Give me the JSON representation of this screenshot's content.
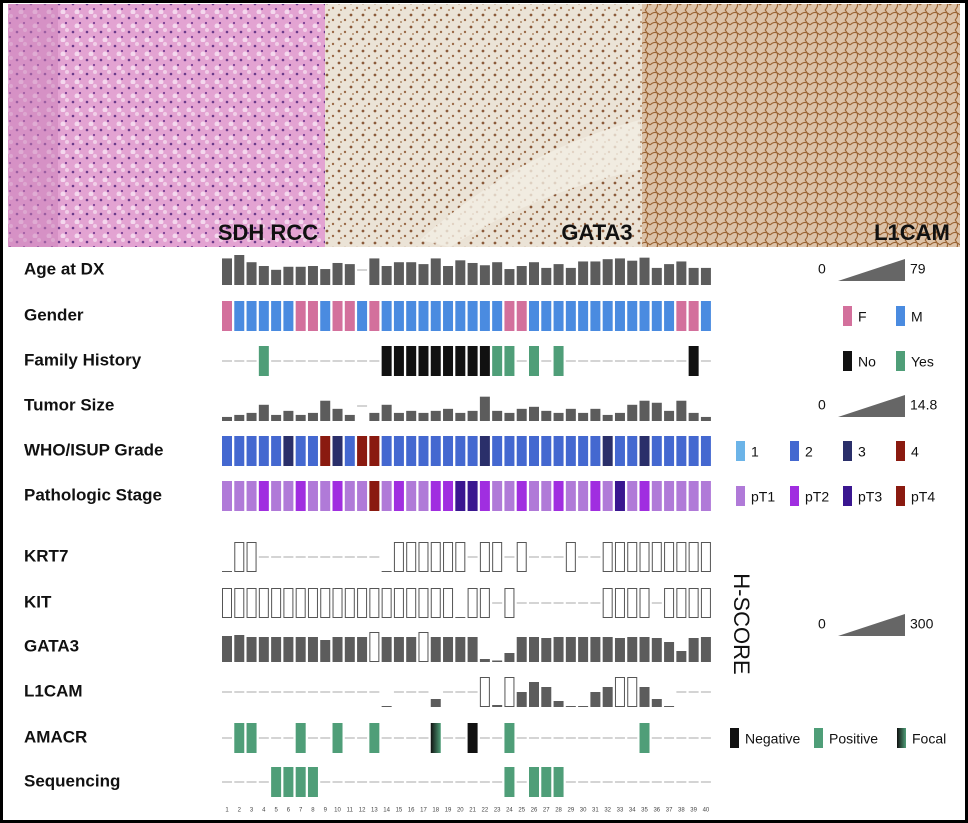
{
  "panels": [
    {
      "label": "SDH RCC"
    },
    {
      "label": "GATA3"
    },
    {
      "label": "L1CAM"
    }
  ],
  "cases": [
    1,
    2,
    3,
    4,
    5,
    6,
    7,
    8,
    9,
    10,
    11,
    12,
    13,
    14,
    15,
    16,
    17,
    18,
    19,
    20,
    21,
    22,
    23,
    24,
    25,
    26,
    27,
    28,
    29,
    30,
    31,
    32,
    33,
    34,
    35,
    36,
    37,
    38,
    39,
    40
  ],
  "hscore": {
    "label": "H-SCORE",
    "min": 0,
    "max": 300
  },
  "rows": [
    {
      "label": "Age at DX",
      "kind": "bar",
      "color": "#5c5c5c",
      "legend": {
        "type": "ramp",
        "min": 0,
        "max": 79
      },
      "values": [
        70,
        79,
        60,
        50,
        40,
        48,
        48,
        50,
        42,
        58,
        55,
        null,
        70,
        50,
        60,
        60,
        55,
        70,
        50,
        65,
        58,
        52,
        60,
        42,
        50,
        60,
        45,
        55,
        45,
        62,
        62,
        68,
        70,
        64,
        72,
        45,
        55,
        62,
        45,
        45
      ]
    },
    {
      "label": "Gender",
      "kind": "category",
      "legend": {
        "type": "swatch",
        "items": [
          {
            "label": "F",
            "color": "#d3709c"
          },
          {
            "label": "M",
            "color": "#4a8be0"
          }
        ]
      },
      "values": [
        "F",
        "M",
        "M",
        "M",
        "M",
        "M",
        "F",
        "F",
        "M",
        "F",
        "F",
        "M",
        "F",
        "M",
        "M",
        "M",
        "M",
        "M",
        "M",
        "M",
        "M",
        "M",
        "M",
        "F",
        "F",
        "M",
        "M",
        "M",
        "M",
        "M",
        "M",
        "M",
        "M",
        "M",
        "M",
        "M",
        "M",
        "F",
        "F",
        "M"
      ]
    },
    {
      "label": "Family History",
      "kind": "category",
      "legend": {
        "type": "swatch",
        "items": [
          {
            "label": "No",
            "color": "#111111"
          },
          {
            "label": "Yes",
            "color": "#4f9e78"
          }
        ]
      },
      "values": [
        null,
        null,
        null,
        "Yes",
        null,
        null,
        null,
        null,
        null,
        null,
        null,
        null,
        null,
        "No",
        "No",
        "No",
        "No",
        "No",
        "No",
        "No",
        "No",
        "No",
        "Yes",
        "Yes",
        null,
        "Yes",
        null,
        "Yes",
        null,
        null,
        null,
        null,
        null,
        null,
        null,
        null,
        null,
        null,
        "No",
        null
      ]
    },
    {
      "label": "Tumor Size",
      "kind": "bar",
      "color": "#5c5c5c",
      "legend": {
        "type": "ramp",
        "min": 0,
        "max": 14.8
      },
      "values": [
        2,
        3,
        4,
        8,
        3,
        5,
        3,
        4,
        10,
        6,
        3,
        null,
        4,
        8,
        4,
        5,
        4,
        5,
        6,
        4,
        5,
        12,
        5,
        4,
        6,
        7,
        5,
        4,
        6,
        4,
        6,
        3,
        4,
        8,
        10,
        9,
        5,
        10,
        4,
        2
      ]
    },
    {
      "label": "WHO/ISUP Grade",
      "kind": "category",
      "legend": {
        "type": "swatch",
        "items": [
          {
            "label": 1,
            "color": "#6cb4e8"
          },
          {
            "label": 2,
            "color": "#4468d0"
          },
          {
            "label": 3,
            "color": "#2a2f6a"
          },
          {
            "label": 4,
            "color": "#8a1a10"
          }
        ]
      },
      "values": [
        2,
        2,
        2,
        2,
        2,
        3,
        2,
        2,
        4,
        3,
        2,
        4,
        4,
        2,
        2,
        2,
        2,
        2,
        2,
        2,
        2,
        3,
        2,
        2,
        2,
        2,
        2,
        2,
        2,
        2,
        2,
        3,
        2,
        2,
        3,
        2,
        2,
        2,
        2,
        2
      ]
    },
    {
      "label": "Pathologic Stage",
      "kind": "category",
      "legend": {
        "type": "swatch",
        "items": [
          {
            "label": "pT1",
            "color": "#b07ad8"
          },
          {
            "label": "pT2",
            "color": "#a02ee0"
          },
          {
            "label": "pT3",
            "color": "#3a1690"
          },
          {
            "label": "pT4",
            "color": "#8a1a10"
          }
        ]
      },
      "values": [
        "pT1",
        "pT1",
        "pT1",
        "pT2",
        "pT1",
        "pT1",
        "pT2",
        "pT1",
        "pT1",
        "pT2",
        "pT1",
        "pT1",
        "pT4",
        "pT1",
        "pT2",
        "pT1",
        "pT1",
        "pT2",
        "pT2",
        "pT3",
        "pT3",
        "pT2",
        "pT1",
        "pT1",
        "pT2",
        "pT1",
        "pT1",
        "pT2",
        "pT1",
        "pT1",
        "pT2",
        "pT1",
        "pT3",
        "pT1",
        "pT2",
        "pT1",
        "pT1",
        "pT1",
        "pT1",
        "pT1"
      ]
    },
    {
      "label": "KRT7",
      "kind": "hscore",
      "values": [
        5,
        0,
        0,
        null,
        null,
        null,
        null,
        null,
        null,
        null,
        null,
        null,
        null,
        5,
        0,
        0,
        0,
        0,
        0,
        0,
        null,
        0,
        0,
        null,
        0,
        null,
        null,
        null,
        0,
        null,
        null,
        0,
        0,
        0,
        0,
        0,
        0,
        0,
        0,
        0
      ]
    },
    {
      "label": "KIT",
      "kind": "hscore",
      "values": [
        0,
        0,
        0,
        0,
        0,
        0,
        0,
        0,
        0,
        0,
        0,
        0,
        0,
        0,
        0,
        0,
        0,
        0,
        0,
        5,
        0,
        0,
        null,
        0,
        null,
        null,
        null,
        null,
        null,
        null,
        null,
        0,
        0,
        0,
        0,
        null,
        0,
        0,
        0,
        0
      ]
    },
    {
      "label": "GATA3",
      "kind": "hscore",
      "values": [
        260,
        270,
        250,
        250,
        250,
        250,
        250,
        250,
        220,
        250,
        250,
        250,
        0,
        250,
        250,
        250,
        0,
        250,
        250,
        250,
        250,
        30,
        15,
        90,
        250,
        250,
        240,
        250,
        250,
        250,
        250,
        250,
        240,
        250,
        250,
        240,
        200,
        110,
        240,
        250
      ]
    },
    {
      "label": "L1CAM",
      "kind": "hscore",
      "values": [
        null,
        null,
        null,
        null,
        null,
        null,
        null,
        null,
        null,
        null,
        null,
        null,
        null,
        5,
        null,
        null,
        null,
        80,
        null,
        null,
        null,
        0,
        20,
        0,
        150,
        250,
        200,
        60,
        10,
        10,
        150,
        200,
        0,
        0,
        200,
        80,
        10,
        null,
        null,
        null
      ]
    },
    {
      "label": "AMACR",
      "kind": "category",
      "legend": {
        "type": "swatch",
        "items": [
          {
            "label": "Negative",
            "color": "#111111"
          },
          {
            "label": "Positive",
            "color": "#4f9e78"
          },
          {
            "label": "Focal",
            "color": "focal"
          }
        ]
      },
      "values": [
        null,
        "Positive",
        "Positive",
        null,
        null,
        null,
        "Positive",
        null,
        null,
        "Positive",
        null,
        null,
        "Positive",
        null,
        null,
        null,
        null,
        "Focal",
        null,
        null,
        "Negative",
        null,
        null,
        "Positive",
        null,
        null,
        null,
        null,
        null,
        null,
        null,
        null,
        null,
        null,
        "Positive",
        null,
        null,
        null,
        null,
        null
      ]
    },
    {
      "label": "Sequencing",
      "kind": "flag",
      "color": "#4f9e78",
      "values": [
        null,
        null,
        null,
        null,
        true,
        true,
        true,
        true,
        null,
        null,
        null,
        null,
        null,
        null,
        null,
        null,
        null,
        null,
        null,
        null,
        null,
        null,
        null,
        true,
        null,
        true,
        true,
        true,
        null,
        null,
        null,
        null,
        null,
        null,
        null,
        null,
        null,
        null,
        null,
        null
      ]
    }
  ]
}
